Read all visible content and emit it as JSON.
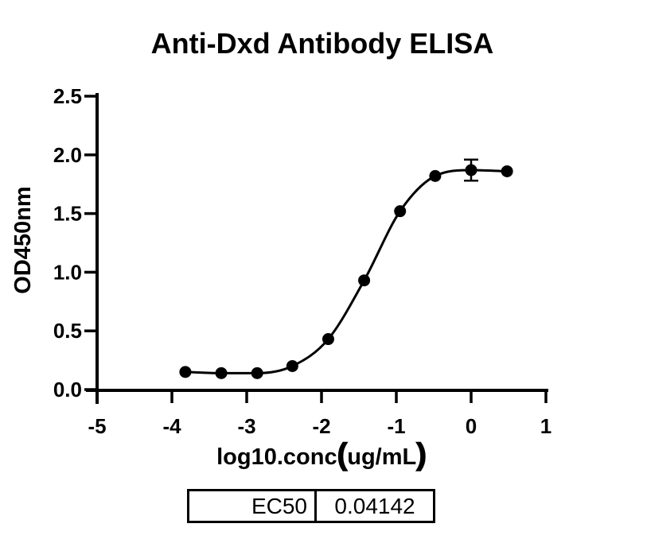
{
  "figure": {
    "background": "#ffffff",
    "ink_color": "#000000"
  },
  "chart_data": {
    "type": "scatter",
    "title": "Anti-Dxd Antibody ELISA",
    "xlabel": "log10.conc（ug/mL）",
    "ylabel": "OD450nm",
    "xlim": [
      -5,
      1
    ],
    "ylim": [
      0,
      2.5
    ],
    "x_ticks": [
      "-5",
      "-4",
      "-3",
      "-2",
      "-1",
      "0",
      "1"
    ],
    "y_ticks": [
      "0.0",
      "0.5",
      "1.0",
      "1.5",
      "2.0",
      "2.5"
    ],
    "grid": false,
    "legend": "none",
    "curve_style": "sigmoidal fit through points",
    "series": [
      {
        "name": "Anti-Dxd antibody",
        "marker": "filled-circle",
        "color": "#000000",
        "x": [
          -3.82,
          -3.34,
          -2.86,
          -2.39,
          -1.91,
          -1.43,
          -0.95,
          -0.48,
          0.0,
          0.48
        ],
        "y": [
          0.15,
          0.14,
          0.14,
          0.2,
          0.43,
          0.93,
          1.52,
          1.82,
          1.87,
          1.86
        ],
        "error_bars": [
          {
            "x": 0.0,
            "y": 1.87,
            "sd": 0.09
          }
        ]
      }
    ]
  },
  "ec50_table": {
    "rows": [
      {
        "label": "EC50",
        "value": "0.04142"
      }
    ]
  }
}
